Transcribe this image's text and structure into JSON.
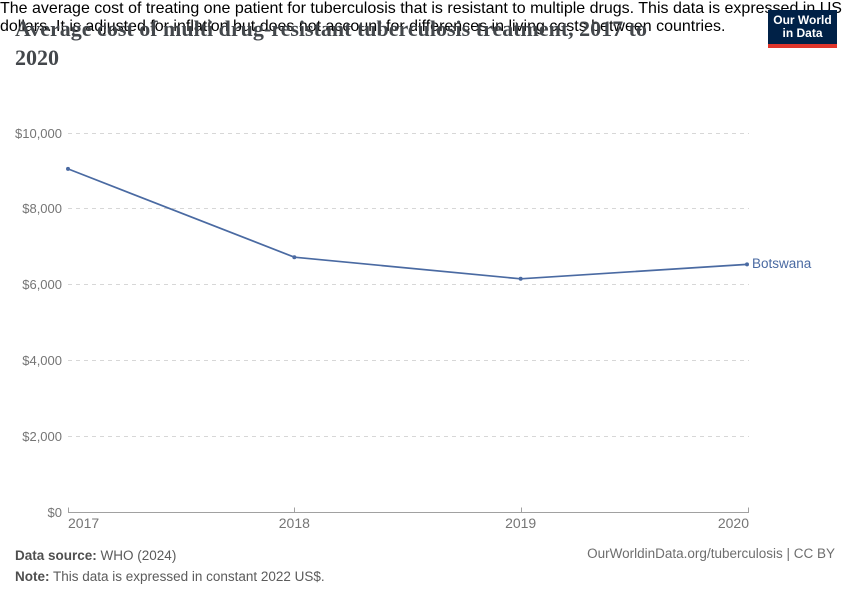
{
  "header": {
    "title": "Average cost of multi drug-resistant tuberculosis treatment, 2017 to 2020",
    "title_line1": "Average cost of multi drug-resistant tuberculosis treatment, 2017 to",
    "title_line2": "2020",
    "subtitle_line1": "The average cost of treating one patient for tuberculosis that is resistant to multiple drugs. This data is expressed in US",
    "subtitle_line2": "dollars. It is adjusted for inflation but does not account for differences in living costs between countries.",
    "logo": {
      "line1": "Our World",
      "line2": "in Data"
    }
  },
  "chart_data": {
    "type": "line",
    "title": "Average cost of multi drug-resistant tuberculosis treatment, 2017 to 2020",
    "xlabel": "",
    "ylabel": "",
    "categories": [
      "2017",
      "2018",
      "2019",
      "2020"
    ],
    "series": [
      {
        "name": "Botswana",
        "color": "#4a6aa2",
        "values": [
          9040,
          6710,
          6140,
          6520
        ]
      }
    ],
    "ylim": [
      0,
      10000
    ],
    "ytick_interval": 2000,
    "ytick_labels": [
      "$0",
      "$2,000",
      "$4,000",
      "$6,000",
      "$8,000",
      "$10,000"
    ],
    "grid": "horizontal-dashed",
    "legend_position": "end-of-line-label"
  },
  "footer": {
    "data_source_label": "Data source:",
    "data_source_value": "WHO (2024)",
    "note_label": "Note:",
    "note_value": "This data is expressed in constant 2022 US$.",
    "credit": "OurWorldinData.org/tuberculosis | CC BY"
  },
  "colors": {
    "line": "#4a6aa2",
    "logo_bg": "#002147",
    "logo_bar": "#e0352b",
    "gridline": "#d7d7d7",
    "axis": "#a1a1a1",
    "tick_label": "#757575"
  }
}
